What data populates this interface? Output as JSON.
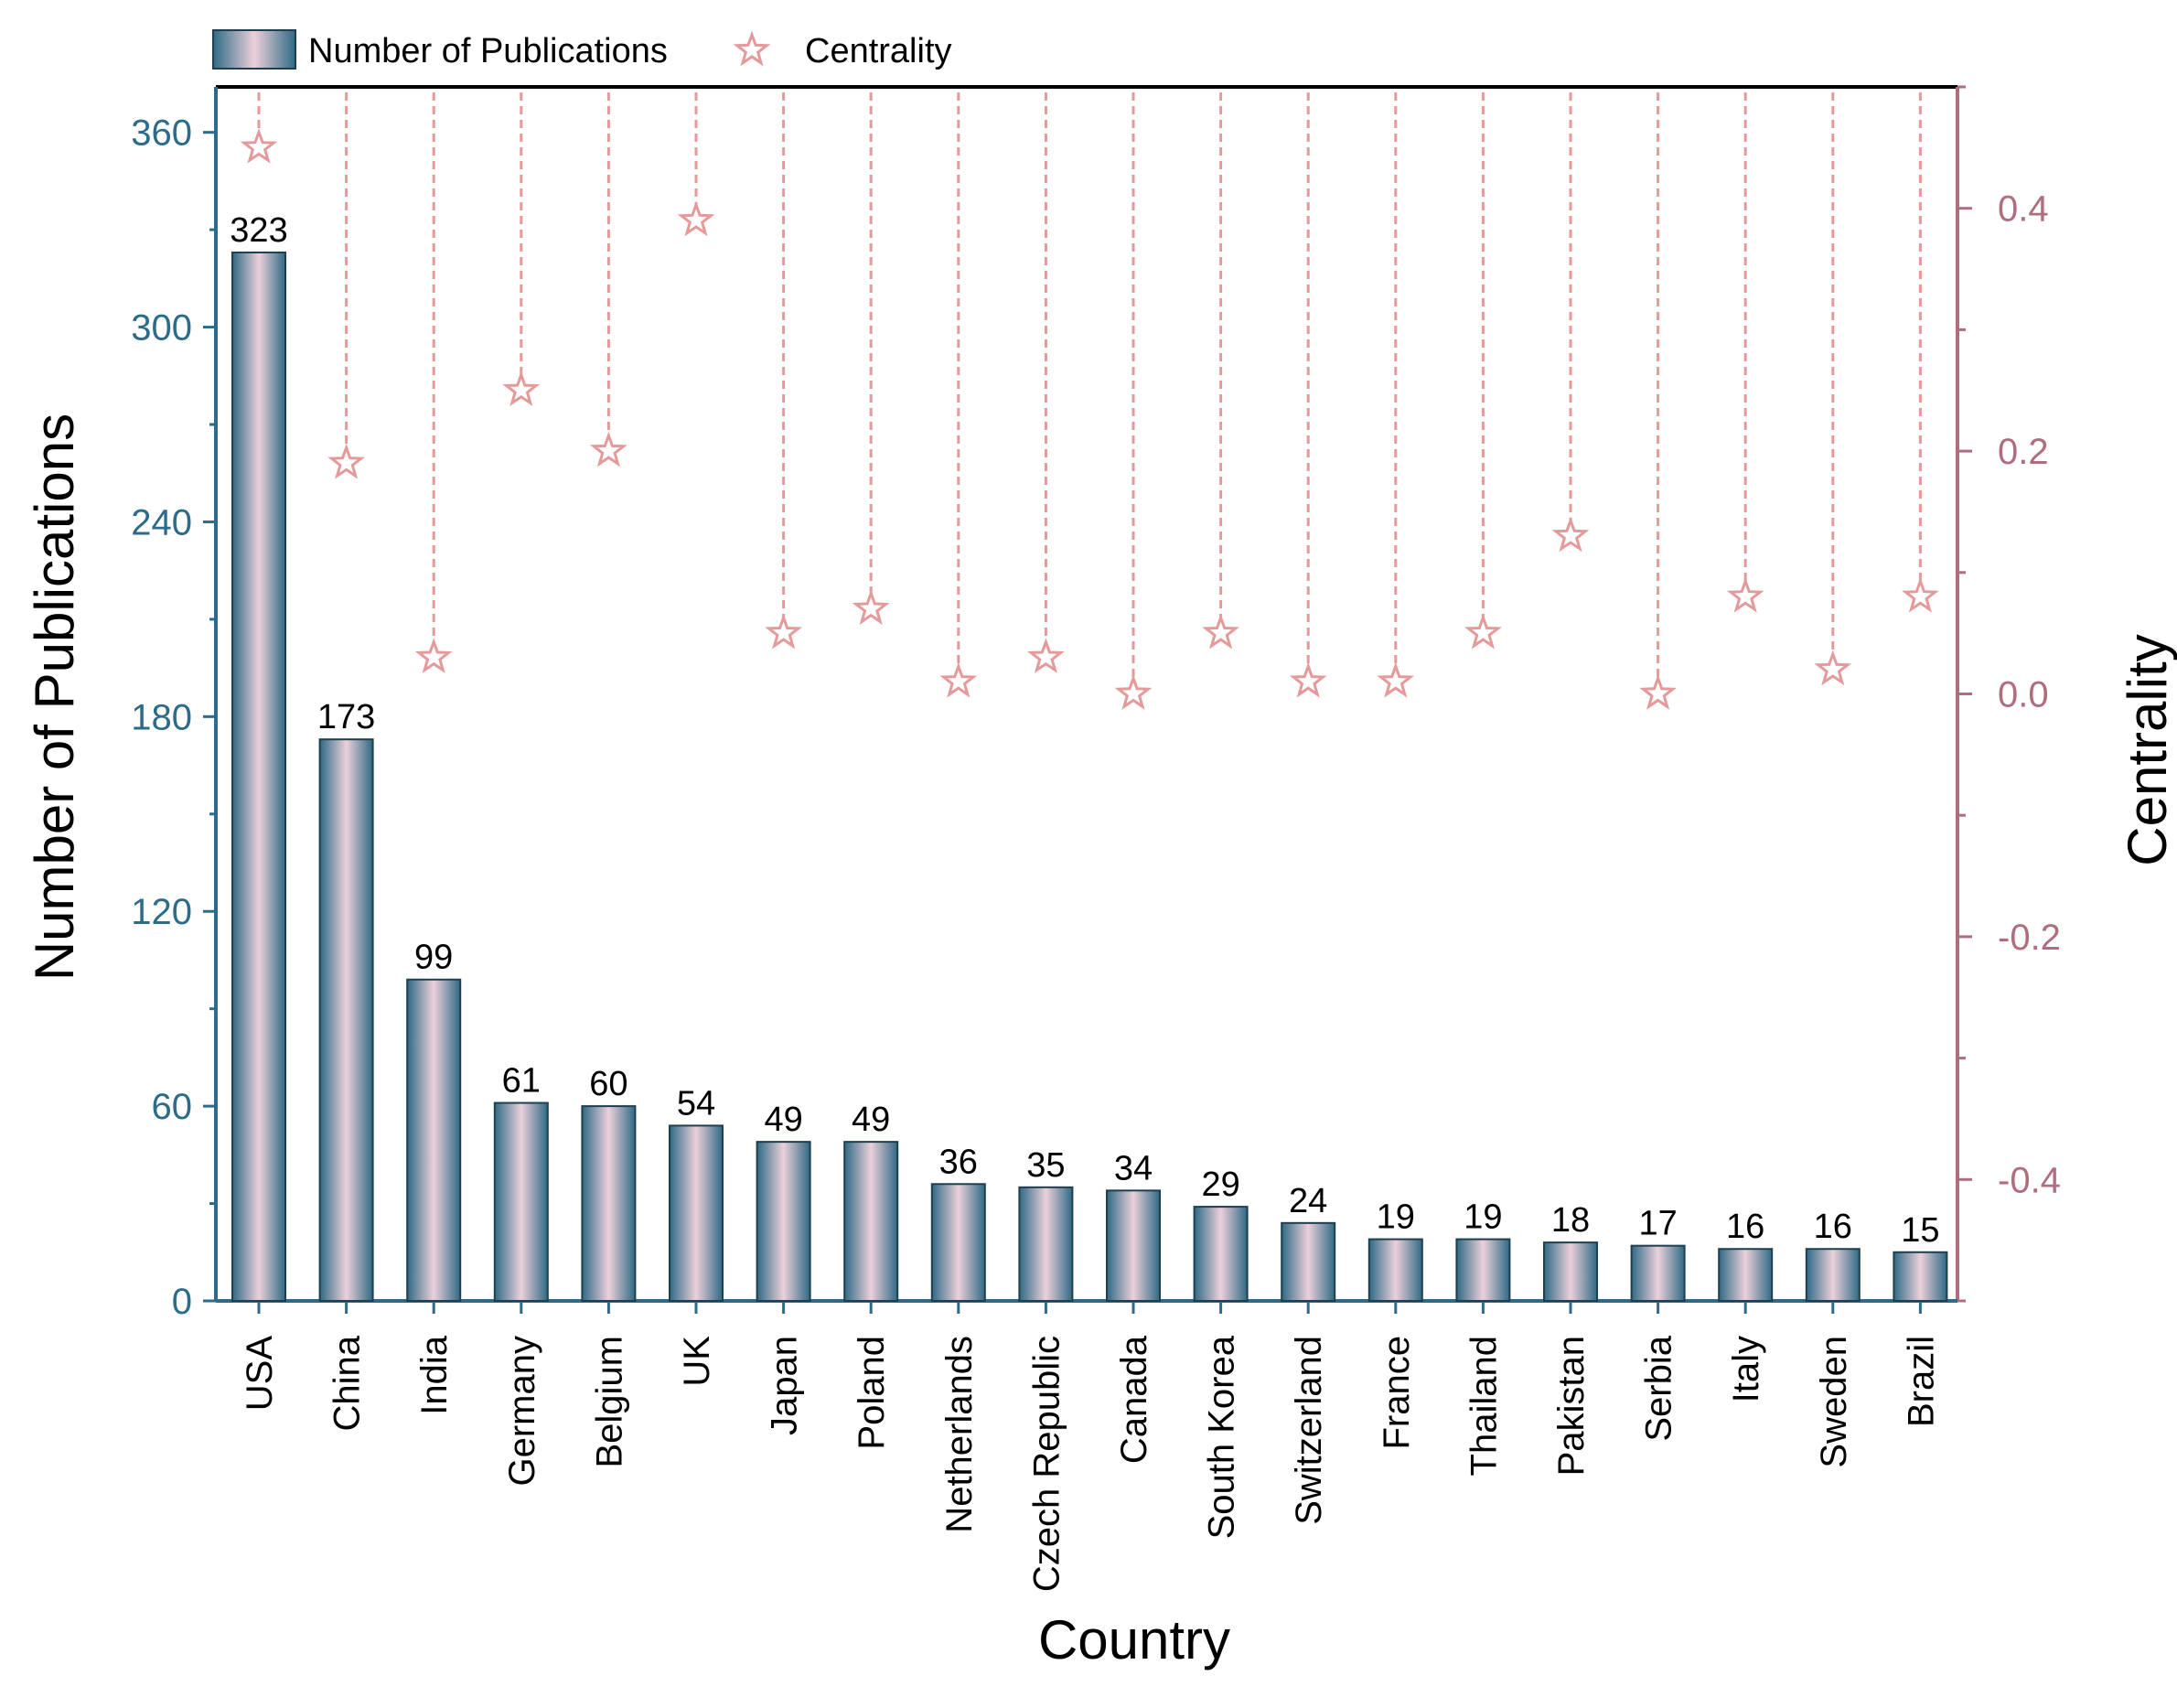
{
  "chart_data": {
    "type": "bar",
    "categories": [
      "USA",
      "China",
      "India",
      "Germany",
      "Belgium",
      "UK",
      "Japan",
      "Poland",
      "Netherlands",
      "Czech Republic",
      "Canada",
      "South Korea",
      "Switzerland",
      "France",
      "Thailand",
      "Pakistan",
      "Serbia",
      "Italy",
      "Sweden",
      "Brazil"
    ],
    "series": [
      {
        "name": "Number of Publications",
        "type": "bar",
        "axis": "left",
        "values": [
          323,
          173,
          99,
          61,
          60,
          54,
          49,
          49,
          36,
          35,
          34,
          29,
          24,
          19,
          19,
          18,
          17,
          16,
          16,
          15
        ]
      },
      {
        "name": "Centrality",
        "type": "scatter",
        "marker": "star",
        "axis": "right",
        "values": [
          0.45,
          0.19,
          0.03,
          0.25,
          0.2,
          0.39,
          0.05,
          0.07,
          0.01,
          0.03,
          0.0,
          0.05,
          0.01,
          0.01,
          0.05,
          0.13,
          0.0,
          0.08,
          0.02,
          0.08
        ]
      }
    ],
    "data_labels": [
      "323",
      "173",
      "99",
      "61",
      "60",
      "54",
      "49",
      "49",
      "36",
      "35",
      "34",
      "29",
      "24",
      "19",
      "19",
      "18",
      "17",
      "16",
      "16",
      "15"
    ],
    "xlabel": "Country",
    "ylabel": "Number of Publications",
    "y2label": "Centrality",
    "ylim": [
      0,
      374
    ],
    "y2lim": [
      -0.5,
      0.5
    ],
    "yticks": [
      "0",
      "60",
      "120",
      "180",
      "240",
      "300",
      "360"
    ],
    "y2ticks": [
      "-0.4",
      "-0.2",
      "0.0",
      "0.2",
      "0.4"
    ],
    "legend": {
      "placement": "top-left, above plot",
      "entries": [
        "Number of Publications",
        "Centrality"
      ]
    },
    "grid": false,
    "colors": {
      "bar_dark": "#2e6a85",
      "bar_light": "#ecd0da",
      "left_axis": "#2d6b8a",
      "right_axis": "#b06d7e",
      "centrality": "#e49a9a"
    }
  }
}
